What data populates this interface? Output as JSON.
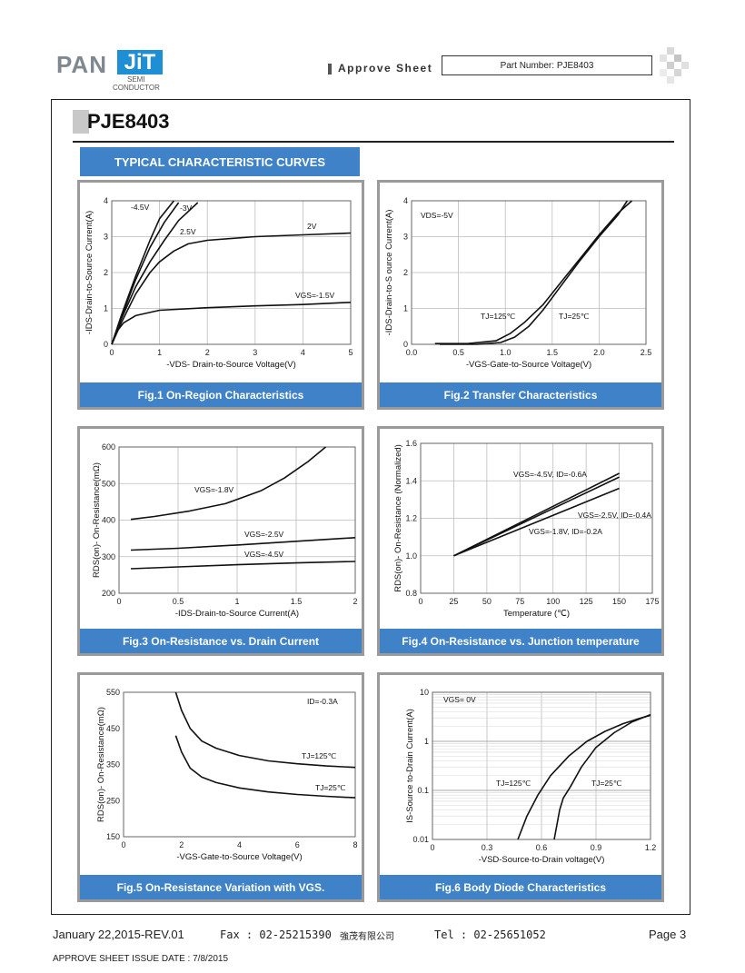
{
  "header": {
    "logo_pan": "PAN",
    "logo_jit": "JiT",
    "logo_semi": "SEMI",
    "logo_conductor": "CONDUCTOR",
    "approve_label": "Approve Sheet",
    "part_number": "Part Number: PJE8403"
  },
  "page_title": "PJE8403",
  "section_banner": "TYPICAL CHARACTERISTIC CURVES",
  "colors": {
    "accent_blue": "#3f82c8",
    "logo_blue": "#1e8fd4",
    "frame_gray": "#9a9a9a"
  },
  "figures": [
    {
      "caption": "Fig.1 On-Region Characteristics"
    },
    {
      "caption": "Fig.2 Transfer Characteristics"
    },
    {
      "caption": "Fig.3 On-Resistance vs. Drain Current"
    },
    {
      "caption": "Fig.4 On-Resistance vs. Junction temperature"
    },
    {
      "caption": "Fig.5 On-Resistance Variation with VGS."
    },
    {
      "caption": "Fig.6 Body Diode Characteristics"
    }
  ],
  "chart_data": [
    {
      "type": "line",
      "xlabel": "-VDS- Drain-to-Source Voltage(V)",
      "ylabel": "-IDS-Drain-to-Source Current(A)",
      "xlim": [
        0,
        5
      ],
      "ylim": [
        0,
        4
      ],
      "xticks": [
        "0",
        "1",
        "2",
        "3",
        "4",
        "5"
      ],
      "yticks": [
        "0",
        "1",
        "2",
        "3",
        "4"
      ],
      "series": [
        {
          "name": "-4.5V",
          "x": [
            0,
            0.2,
            0.5,
            0.8,
            1.0,
            1.3
          ],
          "y": [
            0,
            0.8,
            1.9,
            2.9,
            3.5,
            4.0
          ]
        },
        {
          "name": "-3V",
          "x": [
            0,
            0.2,
            0.5,
            0.8,
            1.1,
            1.4
          ],
          "y": [
            0,
            0.75,
            1.8,
            2.7,
            3.4,
            3.95
          ]
        },
        {
          "name": "2.5V",
          "x": [
            0,
            0.2,
            0.5,
            0.8,
            1.1,
            1.4,
            1.8
          ],
          "y": [
            0,
            0.7,
            1.6,
            2.3,
            2.9,
            3.45,
            3.95
          ]
        },
        {
          "name": "2V",
          "x": [
            0,
            0.2,
            0.5,
            0.8,
            1.0,
            1.3,
            1.6,
            2.0,
            3.0,
            4.0,
            5.0
          ],
          "y": [
            0,
            0.6,
            1.4,
            2.0,
            2.3,
            2.6,
            2.8,
            2.9,
            3.0,
            3.05,
            3.1
          ]
        },
        {
          "name": "VGS=-1.5V",
          "x": [
            0,
            0.1,
            0.25,
            0.5,
            1.0,
            2.0,
            3.0,
            4.0,
            5.0
          ],
          "y": [
            0,
            0.35,
            0.6,
            0.8,
            0.95,
            1.02,
            1.07,
            1.11,
            1.17
          ]
        }
      ]
    },
    {
      "type": "line",
      "xlabel": "-VGS-Gate-to-Source Voltage(V)",
      "ylabel": "-IDS-Drain-to-S ource Current(A)",
      "xlim": [
        0,
        2.5
      ],
      "ylim": [
        0,
        4
      ],
      "xticks": [
        "0.0",
        "0.5",
        "1.0",
        "1.5",
        "2.0",
        "2.5"
      ],
      "yticks": [
        "0",
        "1",
        "2",
        "3",
        "4"
      ],
      "annotation": "VDS=-5V",
      "series": [
        {
          "name": "TJ=125℃",
          "x": [
            0.25,
            0.6,
            0.9,
            1.05,
            1.2,
            1.4,
            1.6,
            1.8,
            2.0,
            2.2,
            2.35
          ],
          "y": [
            0.02,
            0.02,
            0.1,
            0.3,
            0.6,
            1.1,
            1.75,
            2.4,
            3.05,
            3.65,
            4.0
          ]
        },
        {
          "name": "TJ=25℃",
          "x": [
            0.3,
            0.7,
            0.95,
            1.1,
            1.25,
            1.4,
            1.6,
            1.8,
            2.0,
            2.2,
            2.3
          ],
          "y": [
            0.0,
            0.0,
            0.05,
            0.2,
            0.5,
            0.95,
            1.65,
            2.35,
            3.0,
            3.6,
            4.0
          ]
        }
      ]
    },
    {
      "type": "line",
      "xlabel": "-IDS-Drain-to-Source Current(A)",
      "ylabel": "RDS(on)- On-Resistance(mΩ)",
      "xlim": [
        0,
        2
      ],
      "ylim": [
        200,
        600
      ],
      "xticks": [
        "0",
        "0.5",
        "1",
        "1.5",
        "2"
      ],
      "yticks": [
        "200",
        "300",
        "400",
        "500",
        "600"
      ],
      "series": [
        {
          "name": "VGS=-1.8V",
          "x": [
            0.1,
            0.3,
            0.6,
            0.9,
            1.2,
            1.4,
            1.6,
            1.75
          ],
          "y": [
            402,
            410,
            425,
            445,
            480,
            515,
            560,
            600
          ]
        },
        {
          "name": "VGS=-2.5V",
          "x": [
            0.1,
            0.5,
            1.0,
            1.5,
            2.0
          ],
          "y": [
            318,
            323,
            332,
            342,
            352
          ]
        },
        {
          "name": "VGS=-4.5V",
          "x": [
            0.1,
            0.5,
            1.0,
            1.5,
            2.0
          ],
          "y": [
            267,
            272,
            278,
            283,
            287
          ]
        }
      ]
    },
    {
      "type": "line",
      "xlabel": "Temperature (℃)",
      "ylabel": "RDS(on)- On-Resistance (Normalized)",
      "xlim": [
        0,
        175
      ],
      "ylim": [
        0.8,
        1.6
      ],
      "xticks": [
        "0",
        "25",
        "50",
        "75",
        "100",
        "125",
        "150",
        "175"
      ],
      "yticks": [
        "0.8",
        "1.0",
        "1.2",
        "1.4",
        "1.6"
      ],
      "series": [
        {
          "name": "VGS=-4.5V, ID=-0.6A",
          "x": [
            25,
            150
          ],
          "y": [
            1.0,
            1.44
          ]
        },
        {
          "name": "VGS=-2.5V, ID=-0.4A",
          "x": [
            25,
            150
          ],
          "y": [
            1.0,
            1.42
          ]
        },
        {
          "name": "VGS=-1.8V, ID=-0.2A",
          "x": [
            25,
            150
          ],
          "y": [
            1.0,
            1.36
          ]
        }
      ]
    },
    {
      "type": "line",
      "xlabel": "-VGS-Gate-to-Source Voltage(V)",
      "ylabel": "RDS(on)- On-Resistance(mΩ)",
      "xlim": [
        0,
        8
      ],
      "ylim": [
        150,
        550
      ],
      "xticks": [
        "0",
        "2",
        "4",
        "6",
        "8"
      ],
      "yticks": [
        "150",
        "250",
        "350",
        "450",
        "550"
      ],
      "annotation": "ID=-0.3A",
      "series": [
        {
          "name": "TJ=125℃",
          "x": [
            1.8,
            2.0,
            2.3,
            2.7,
            3.2,
            4.0,
            5.0,
            6.0,
            7.0,
            8.0
          ],
          "y": [
            550,
            500,
            450,
            415,
            395,
            375,
            360,
            352,
            346,
            342
          ]
        },
        {
          "name": "TJ=25℃",
          "x": [
            1.8,
            2.0,
            2.3,
            2.7,
            3.2,
            4.0,
            5.0,
            6.0,
            7.0,
            8.0
          ],
          "y": [
            430,
            385,
            340,
            315,
            300,
            285,
            274,
            267,
            262,
            258
          ]
        }
      ]
    },
    {
      "type": "line",
      "xlabel": "-VSD-Source-to-Drain voltage(V)",
      "ylabel": "IS-Source to-Drain Current(A)",
      "xlim": [
        0,
        1.2
      ],
      "ylim": [
        0.01,
        10
      ],
      "yscale": "log",
      "xticks": [
        "0",
        "0.3",
        "0.6",
        "0.9",
        "1.2"
      ],
      "yticks": [
        "0.01",
        "0.1",
        "1",
        "10"
      ],
      "annotation": "VGS= 0V",
      "series": [
        {
          "name": "TJ=125℃",
          "x": [
            0.47,
            0.52,
            0.58,
            0.65,
            0.75,
            0.85,
            0.95,
            1.05,
            1.15,
            1.2
          ],
          "y": [
            0.01,
            0.03,
            0.08,
            0.2,
            0.5,
            1.0,
            1.6,
            2.3,
            3.0,
            3.4
          ]
        },
        {
          "name": "TJ=25℃",
          "x": [
            0.67,
            0.7,
            0.72,
            0.76,
            0.82,
            0.9,
            1.0,
            1.1,
            1.2
          ],
          "y": [
            0.01,
            0.04,
            0.07,
            0.12,
            0.3,
            0.75,
            1.5,
            2.5,
            3.5
          ]
        }
      ]
    }
  ],
  "chart_text": [
    {
      "labels": [
        "-4.5V",
        "-3V",
        "2.5V",
        "2V",
        "VGS=-1.5V"
      ]
    },
    {
      "labels": [
        "VDS=-5V",
        "TJ=125℃",
        "TJ=25℃"
      ]
    },
    {
      "labels": [
        "VGS=-1.8V",
        "VGS=-2.5V",
        "VGS=-4.5V"
      ]
    },
    {
      "labels": [
        "VGS=-4.5V, ID=-0.6A",
        "VGS=-2.5V, ID=-0.4A",
        "VGS=-1.8V, ID=-0.2A"
      ]
    },
    {
      "labels": [
        "ID=-0.3A",
        "TJ=125℃",
        "TJ=25℃"
      ]
    },
    {
      "labels": [
        "VGS= 0V",
        "TJ=125℃",
        "TJ=25℃"
      ]
    }
  ],
  "footer": {
    "date_rev": "January 22,2015-REV.01",
    "fax": "Fax : 02-25215390",
    "company": "強茂有限公司",
    "tel": "Tel : 02-25651052",
    "page": "Page 3",
    "issue_date": "APPROVE SHEET ISSUE DATE : 7/8/2015"
  }
}
